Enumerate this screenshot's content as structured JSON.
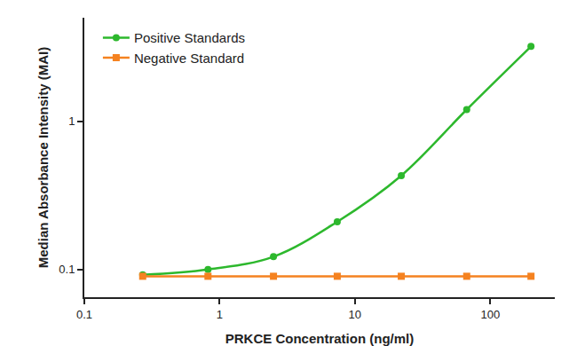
{
  "chart_data": {
    "type": "line",
    "x_label": "PRKCE Concentration (ng/ml)",
    "y_label": "Median Absorbance Intensity (MAI)",
    "log": true,
    "grid": false,
    "legend": "upper left",
    "xlim": [
      0.1,
      300
    ],
    "ylim": [
      0.065,
      5
    ],
    "xticks": [
      0.1,
      1,
      10,
      100
    ],
    "yticks": [
      0.1,
      1
    ],
    "series": [
      {
        "name": "Positive Standards",
        "color": "#2db82d",
        "marker": "circle",
        "line_style": "solid",
        "x": [
          0.27,
          0.82,
          2.5,
          7.4,
          22,
          67,
          200
        ],
        "values": [
          0.092,
          0.1,
          0.122,
          0.21,
          0.43,
          1.2,
          3.2
        ]
      },
      {
        "name": "Negative Standard",
        "color": "#f58220",
        "marker": "square",
        "line_style": "solid",
        "x": [
          0.27,
          0.82,
          2.5,
          7.4,
          22,
          67,
          200
        ],
        "values": [
          0.09,
          0.09,
          0.09,
          0.09,
          0.09,
          0.09,
          0.09
        ]
      }
    ]
  }
}
